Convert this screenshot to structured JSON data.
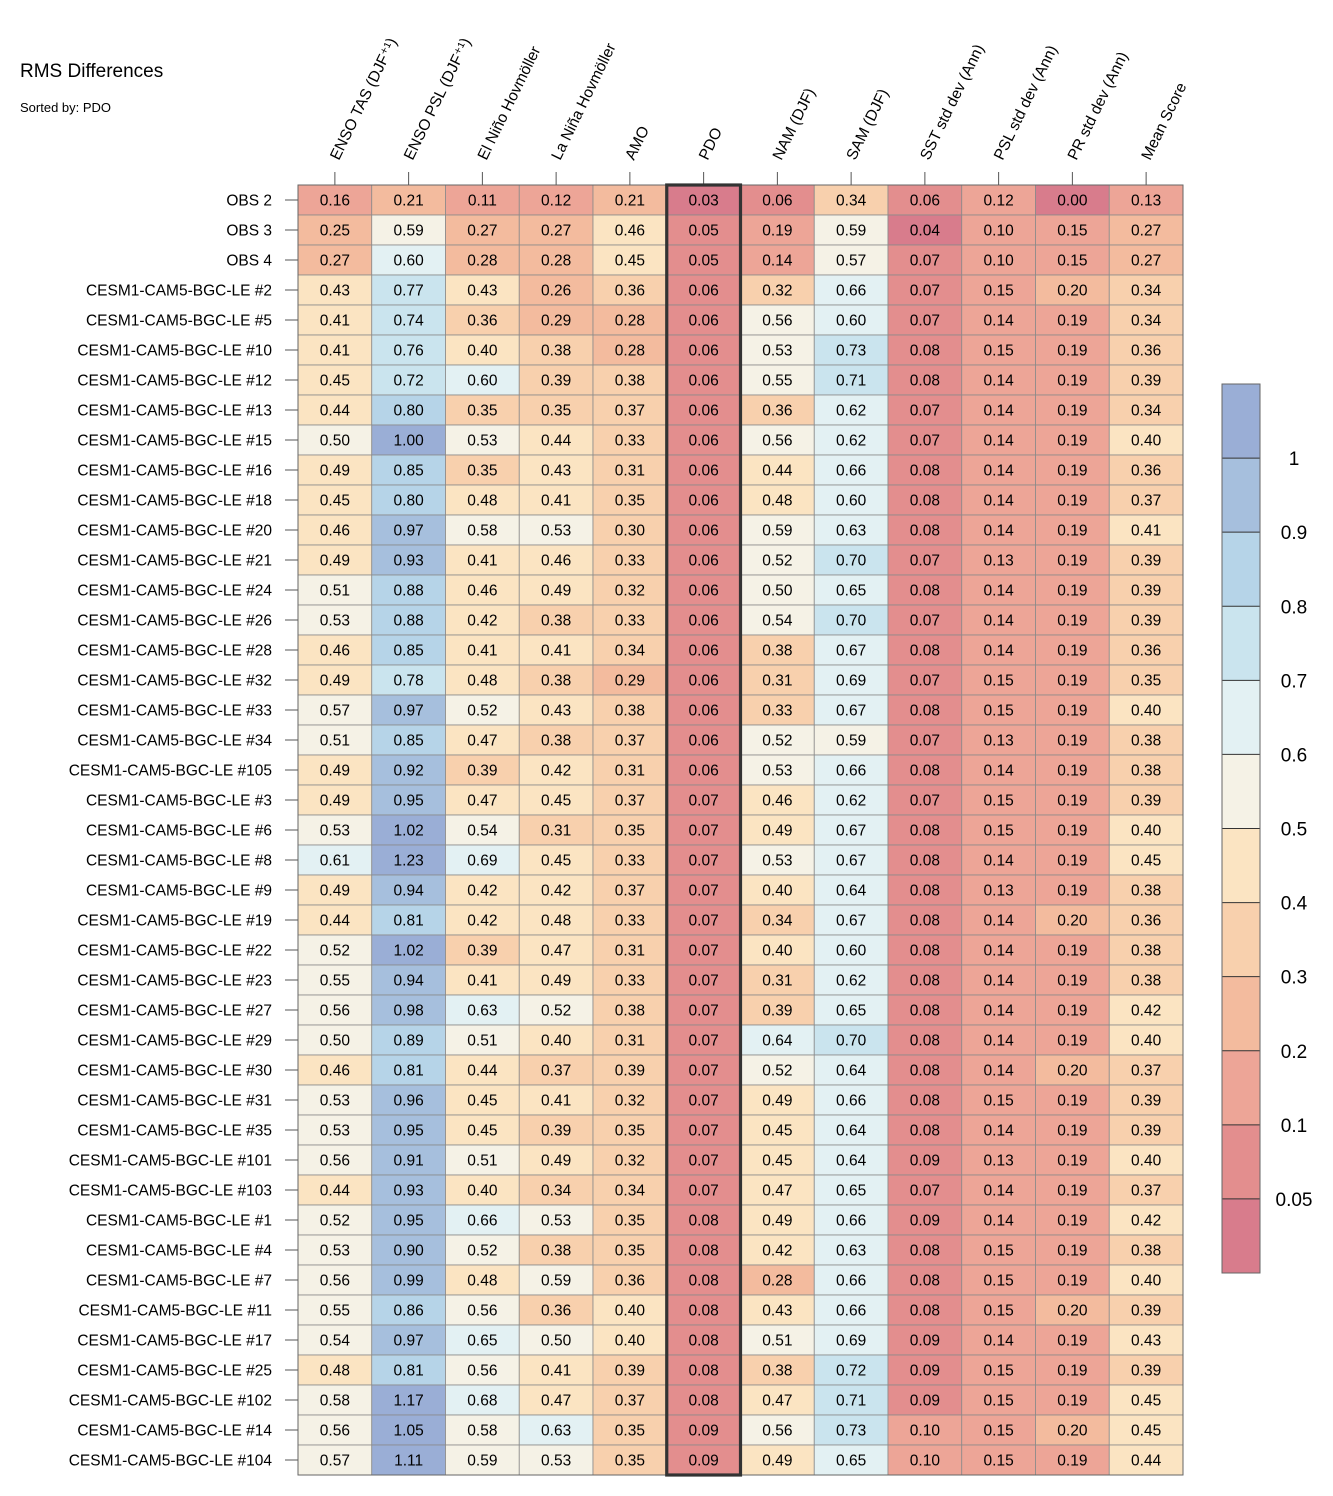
{
  "chart_data": {
    "type": "heatmap",
    "title": "RMS Differences",
    "subtitle": "Sorted by: PDO",
    "highlighted_column": "PDO",
    "columns": [
      "ENSO TAS (DJF⁺¹)",
      "ENSO PSL (DJF⁺¹)",
      "El Niño Hovmöller",
      "La Niña Hovmöller",
      "AMO",
      "PDO",
      "NAM (DJF)",
      "SAM (DJF)",
      "SST std dev (Ann)",
      "PSL std dev (Ann)",
      "PR std dev (Ann)",
      "Mean Score"
    ],
    "rows": [
      {
        "label": "OBS 2",
        "values": [
          "0.16",
          "0.21",
          "0.11",
          "0.12",
          "0.21",
          "0.03",
          "0.06",
          "0.34",
          "0.06",
          "0.12",
          "0.00",
          "0.13"
        ]
      },
      {
        "label": "OBS 3",
        "values": [
          "0.25",
          "0.59",
          "0.27",
          "0.27",
          "0.46",
          "0.05",
          "0.19",
          "0.59",
          "0.04",
          "0.10",
          "0.15",
          "0.27"
        ]
      },
      {
        "label": "OBS 4",
        "values": [
          "0.27",
          "0.60",
          "0.28",
          "0.28",
          "0.45",
          "0.05",
          "0.14",
          "0.57",
          "0.07",
          "0.10",
          "0.15",
          "0.27"
        ]
      },
      {
        "label": "CESM1-CAM5-BGC-LE #2",
        "values": [
          "0.43",
          "0.77",
          "0.43",
          "0.26",
          "0.36",
          "0.06",
          "0.32",
          "0.66",
          "0.07",
          "0.15",
          "0.20",
          "0.34"
        ]
      },
      {
        "label": "CESM1-CAM5-BGC-LE #5",
        "values": [
          "0.41",
          "0.74",
          "0.36",
          "0.29",
          "0.28",
          "0.06",
          "0.56",
          "0.60",
          "0.07",
          "0.14",
          "0.19",
          "0.34"
        ]
      },
      {
        "label": "CESM1-CAM5-BGC-LE #10",
        "values": [
          "0.41",
          "0.76",
          "0.40",
          "0.38",
          "0.28",
          "0.06",
          "0.53",
          "0.73",
          "0.08",
          "0.15",
          "0.19",
          "0.36"
        ]
      },
      {
        "label": "CESM1-CAM5-BGC-LE #12",
        "values": [
          "0.45",
          "0.72",
          "0.60",
          "0.39",
          "0.38",
          "0.06",
          "0.55",
          "0.71",
          "0.08",
          "0.14",
          "0.19",
          "0.39"
        ]
      },
      {
        "label": "CESM1-CAM5-BGC-LE #13",
        "values": [
          "0.44",
          "0.80",
          "0.35",
          "0.35",
          "0.37",
          "0.06",
          "0.36",
          "0.62",
          "0.07",
          "0.14",
          "0.19",
          "0.34"
        ]
      },
      {
        "label": "CESM1-CAM5-BGC-LE #15",
        "values": [
          "0.50",
          "1.00",
          "0.53",
          "0.44",
          "0.33",
          "0.06",
          "0.56",
          "0.62",
          "0.07",
          "0.14",
          "0.19",
          "0.40"
        ]
      },
      {
        "label": "CESM1-CAM5-BGC-LE #16",
        "values": [
          "0.49",
          "0.85",
          "0.35",
          "0.43",
          "0.31",
          "0.06",
          "0.44",
          "0.66",
          "0.08",
          "0.14",
          "0.19",
          "0.36"
        ]
      },
      {
        "label": "CESM1-CAM5-BGC-LE #18",
        "values": [
          "0.45",
          "0.80",
          "0.48",
          "0.41",
          "0.35",
          "0.06",
          "0.48",
          "0.60",
          "0.08",
          "0.14",
          "0.19",
          "0.37"
        ]
      },
      {
        "label": "CESM1-CAM5-BGC-LE #20",
        "values": [
          "0.46",
          "0.97",
          "0.58",
          "0.53",
          "0.30",
          "0.06",
          "0.59",
          "0.63",
          "0.08",
          "0.14",
          "0.19",
          "0.41"
        ]
      },
      {
        "label": "CESM1-CAM5-BGC-LE #21",
        "values": [
          "0.49",
          "0.93",
          "0.41",
          "0.46",
          "0.33",
          "0.06",
          "0.52",
          "0.70",
          "0.07",
          "0.13",
          "0.19",
          "0.39"
        ]
      },
      {
        "label": "CESM1-CAM5-BGC-LE #24",
        "values": [
          "0.51",
          "0.88",
          "0.46",
          "0.49",
          "0.32",
          "0.06",
          "0.50",
          "0.65",
          "0.08",
          "0.14",
          "0.19",
          "0.39"
        ]
      },
      {
        "label": "CESM1-CAM5-BGC-LE #26",
        "values": [
          "0.53",
          "0.88",
          "0.42",
          "0.38",
          "0.33",
          "0.06",
          "0.54",
          "0.70",
          "0.07",
          "0.14",
          "0.19",
          "0.39"
        ]
      },
      {
        "label": "CESM1-CAM5-BGC-LE #28",
        "values": [
          "0.46",
          "0.85",
          "0.41",
          "0.41",
          "0.34",
          "0.06",
          "0.38",
          "0.67",
          "0.08",
          "0.14",
          "0.19",
          "0.36"
        ]
      },
      {
        "label": "CESM1-CAM5-BGC-LE #32",
        "values": [
          "0.49",
          "0.78",
          "0.48",
          "0.38",
          "0.29",
          "0.06",
          "0.31",
          "0.69",
          "0.07",
          "0.15",
          "0.19",
          "0.35"
        ]
      },
      {
        "label": "CESM1-CAM5-BGC-LE #33",
        "values": [
          "0.57",
          "0.97",
          "0.52",
          "0.43",
          "0.38",
          "0.06",
          "0.33",
          "0.67",
          "0.08",
          "0.15",
          "0.19",
          "0.40"
        ]
      },
      {
        "label": "CESM1-CAM5-BGC-LE #34",
        "values": [
          "0.51",
          "0.85",
          "0.47",
          "0.38",
          "0.37",
          "0.06",
          "0.52",
          "0.59",
          "0.07",
          "0.13",
          "0.19",
          "0.38"
        ]
      },
      {
        "label": "CESM1-CAM5-BGC-LE #105",
        "values": [
          "0.49",
          "0.92",
          "0.39",
          "0.42",
          "0.31",
          "0.06",
          "0.53",
          "0.66",
          "0.08",
          "0.14",
          "0.19",
          "0.38"
        ]
      },
      {
        "label": "CESM1-CAM5-BGC-LE #3",
        "values": [
          "0.49",
          "0.95",
          "0.47",
          "0.45",
          "0.37",
          "0.07",
          "0.46",
          "0.62",
          "0.07",
          "0.15",
          "0.19",
          "0.39"
        ]
      },
      {
        "label": "CESM1-CAM5-BGC-LE #6",
        "values": [
          "0.53",
          "1.02",
          "0.54",
          "0.31",
          "0.35",
          "0.07",
          "0.49",
          "0.67",
          "0.08",
          "0.15",
          "0.19",
          "0.40"
        ]
      },
      {
        "label": "CESM1-CAM5-BGC-LE #8",
        "values": [
          "0.61",
          "1.23",
          "0.69",
          "0.45",
          "0.33",
          "0.07",
          "0.53",
          "0.67",
          "0.08",
          "0.14",
          "0.19",
          "0.45"
        ]
      },
      {
        "label": "CESM1-CAM5-BGC-LE #9",
        "values": [
          "0.49",
          "0.94",
          "0.42",
          "0.42",
          "0.37",
          "0.07",
          "0.40",
          "0.64",
          "0.08",
          "0.13",
          "0.19",
          "0.38"
        ]
      },
      {
        "label": "CESM1-CAM5-BGC-LE #19",
        "values": [
          "0.44",
          "0.81",
          "0.42",
          "0.48",
          "0.33",
          "0.07",
          "0.34",
          "0.67",
          "0.08",
          "0.14",
          "0.20",
          "0.36"
        ]
      },
      {
        "label": "CESM1-CAM5-BGC-LE #22",
        "values": [
          "0.52",
          "1.02",
          "0.39",
          "0.47",
          "0.31",
          "0.07",
          "0.40",
          "0.60",
          "0.08",
          "0.14",
          "0.19",
          "0.38"
        ]
      },
      {
        "label": "CESM1-CAM5-BGC-LE #23",
        "values": [
          "0.55",
          "0.94",
          "0.41",
          "0.49",
          "0.33",
          "0.07",
          "0.31",
          "0.62",
          "0.08",
          "0.14",
          "0.19",
          "0.38"
        ]
      },
      {
        "label": "CESM1-CAM5-BGC-LE #27",
        "values": [
          "0.56",
          "0.98",
          "0.63",
          "0.52",
          "0.38",
          "0.07",
          "0.39",
          "0.65",
          "0.08",
          "0.14",
          "0.19",
          "0.42"
        ]
      },
      {
        "label": "CESM1-CAM5-BGC-LE #29",
        "values": [
          "0.50",
          "0.89",
          "0.51",
          "0.40",
          "0.31",
          "0.07",
          "0.64",
          "0.70",
          "0.08",
          "0.14",
          "0.19",
          "0.40"
        ]
      },
      {
        "label": "CESM1-CAM5-BGC-LE #30",
        "values": [
          "0.46",
          "0.81",
          "0.44",
          "0.37",
          "0.39",
          "0.07",
          "0.52",
          "0.64",
          "0.08",
          "0.14",
          "0.20",
          "0.37"
        ]
      },
      {
        "label": "CESM1-CAM5-BGC-LE #31",
        "values": [
          "0.53",
          "0.96",
          "0.45",
          "0.41",
          "0.32",
          "0.07",
          "0.49",
          "0.66",
          "0.08",
          "0.15",
          "0.19",
          "0.39"
        ]
      },
      {
        "label": "CESM1-CAM5-BGC-LE #35",
        "values": [
          "0.53",
          "0.95",
          "0.45",
          "0.39",
          "0.35",
          "0.07",
          "0.45",
          "0.64",
          "0.08",
          "0.14",
          "0.19",
          "0.39"
        ]
      },
      {
        "label": "CESM1-CAM5-BGC-LE #101",
        "values": [
          "0.56",
          "0.91",
          "0.51",
          "0.49",
          "0.32",
          "0.07",
          "0.45",
          "0.64",
          "0.09",
          "0.13",
          "0.19",
          "0.40"
        ]
      },
      {
        "label": "CESM1-CAM5-BGC-LE #103",
        "values": [
          "0.44",
          "0.93",
          "0.40",
          "0.34",
          "0.34",
          "0.07",
          "0.47",
          "0.65",
          "0.07",
          "0.14",
          "0.19",
          "0.37"
        ]
      },
      {
        "label": "CESM1-CAM5-BGC-LE #1",
        "values": [
          "0.52",
          "0.95",
          "0.66",
          "0.53",
          "0.35",
          "0.08",
          "0.49",
          "0.66",
          "0.09",
          "0.14",
          "0.19",
          "0.42"
        ]
      },
      {
        "label": "CESM1-CAM5-BGC-LE #4",
        "values": [
          "0.53",
          "0.90",
          "0.52",
          "0.38",
          "0.35",
          "0.08",
          "0.42",
          "0.63",
          "0.08",
          "0.15",
          "0.19",
          "0.38"
        ]
      },
      {
        "label": "CESM1-CAM5-BGC-LE #7",
        "values": [
          "0.56",
          "0.99",
          "0.48",
          "0.59",
          "0.36",
          "0.08",
          "0.28",
          "0.66",
          "0.08",
          "0.15",
          "0.19",
          "0.40"
        ]
      },
      {
        "label": "CESM1-CAM5-BGC-LE #11",
        "values": [
          "0.55",
          "0.86",
          "0.56",
          "0.36",
          "0.40",
          "0.08",
          "0.43",
          "0.66",
          "0.08",
          "0.15",
          "0.20",
          "0.39"
        ]
      },
      {
        "label": "CESM1-CAM5-BGC-LE #17",
        "values": [
          "0.54",
          "0.97",
          "0.65",
          "0.50",
          "0.40",
          "0.08",
          "0.51",
          "0.69",
          "0.09",
          "0.14",
          "0.19",
          "0.43"
        ]
      },
      {
        "label": "CESM1-CAM5-BGC-LE #25",
        "values": [
          "0.48",
          "0.81",
          "0.56",
          "0.41",
          "0.39",
          "0.08",
          "0.38",
          "0.72",
          "0.09",
          "0.15",
          "0.19",
          "0.39"
        ]
      },
      {
        "label": "CESM1-CAM5-BGC-LE #102",
        "values": [
          "0.58",
          "1.17",
          "0.68",
          "0.47",
          "0.37",
          "0.08",
          "0.47",
          "0.71",
          "0.09",
          "0.15",
          "0.19",
          "0.45"
        ]
      },
      {
        "label": "CESM1-CAM5-BGC-LE #14",
        "values": [
          "0.56",
          "1.05",
          "0.58",
          "0.63",
          "0.35",
          "0.09",
          "0.56",
          "0.73",
          "0.10",
          "0.15",
          "0.20",
          "0.45"
        ]
      },
      {
        "label": "CESM1-CAM5-BGC-LE #104",
        "values": [
          "0.57",
          "1.11",
          "0.59",
          "0.53",
          "0.35",
          "0.09",
          "0.49",
          "0.65",
          "0.10",
          "0.15",
          "0.19",
          "0.44"
        ]
      }
    ],
    "colorbar": {
      "levels": [
        0.05,
        0.1,
        0.2,
        0.3,
        0.4,
        0.5,
        0.6,
        0.7,
        0.8,
        0.9,
        1
      ],
      "tick_labels": [
        "0.05",
        "0.1",
        "0.2",
        "0.3",
        "0.4",
        "0.5",
        "0.6",
        "0.7",
        "0.8",
        "0.9",
        "1"
      ],
      "colors": [
        "#d87c8c",
        "#e38e8e",
        "#eda597",
        "#f3bb9e",
        "#f8d0ad",
        "#fbe4c2",
        "#f5f2e6",
        "#e3f1f3",
        "#cae4ee",
        "#b6d4e8",
        "#a6bfdd",
        "#9aaed6"
      ]
    }
  }
}
